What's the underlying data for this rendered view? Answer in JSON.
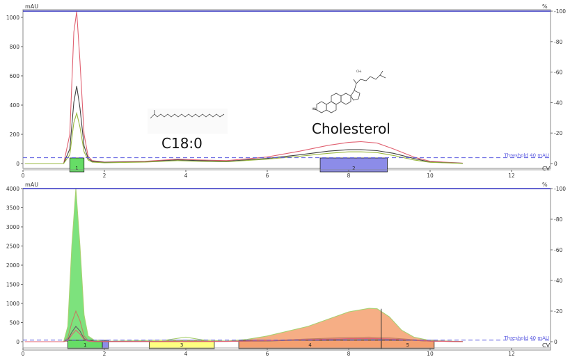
{
  "chart_data": [
    {
      "type": "line",
      "panel": "top",
      "left_axis_label": "mAU",
      "right_axis_label": "%",
      "x_axis_label": "CV",
      "xlim": [
        0,
        13
      ],
      "ylim": [
        0,
        1050
      ],
      "right_ylim": [
        0,
        100
      ],
      "x_ticks": [
        "0",
        "2",
        "4",
        "6",
        "8",
        "10",
        "12"
      ],
      "y_ticks": [
        "0",
        "200",
        "400",
        "600",
        "800",
        "1000"
      ],
      "right_ticks": [
        "0",
        "20",
        "40",
        "60",
        "80",
        "100"
      ],
      "grid": false,
      "threshold": {
        "value": 40,
        "label": "Threshold 40 mAU"
      },
      "gradient_percent": 100,
      "annotations": [
        "C18:0",
        "Cholesterol"
      ],
      "series": [
        {
          "color": "#e06070",
          "x": [
            0.05,
            1.0,
            1.15,
            1.25,
            1.32,
            1.4,
            1.5,
            1.6,
            1.7,
            2.0,
            3.0,
            3.8,
            4.3,
            5.0,
            6.0,
            6.8,
            7.5,
            8.0,
            8.3,
            8.7,
            9.1,
            9.6,
            10.0,
            10.8
          ],
          "y": [
            0,
            0,
            200,
            900,
            1040,
            700,
            200,
            50,
            20,
            10,
            15,
            30,
            25,
            20,
            45,
            85,
            125,
            145,
            150,
            140,
            100,
            45,
            15,
            3
          ]
        },
        {
          "color": "#404040",
          "x": [
            0.05,
            1.0,
            1.15,
            1.25,
            1.32,
            1.4,
            1.5,
            1.6,
            1.7,
            2.0,
            3.0,
            3.8,
            4.3,
            5.0,
            6.0,
            6.8,
            7.5,
            8.0,
            8.3,
            8.7,
            9.1,
            9.6,
            10.0,
            10.8
          ],
          "y": [
            0,
            0,
            100,
            420,
            530,
            380,
            120,
            35,
            15,
            8,
            12,
            25,
            20,
            15,
            35,
            60,
            85,
            95,
            95,
            88,
            70,
            35,
            10,
            2
          ]
        },
        {
          "color": "#9ab840",
          "x": [
            0.05,
            1.0,
            1.15,
            1.25,
            1.32,
            1.4,
            1.5,
            1.6,
            1.7,
            2.0,
            3.0,
            3.8,
            4.3,
            5.0,
            6.0,
            6.8,
            7.5,
            8.0,
            8.3,
            8.7,
            9.1,
            9.6,
            10.0,
            10.8
          ],
          "y": [
            0,
            0,
            60,
            280,
            345,
            250,
            80,
            25,
            10,
            5,
            10,
            20,
            15,
            12,
            30,
            50,
            70,
            80,
            80,
            75,
            55,
            25,
            8,
            1
          ]
        }
      ],
      "fractions": [
        {
          "label": "1",
          "x_start": 1.15,
          "x_end": 1.5,
          "color": "#66dd66"
        },
        {
          "label": "2",
          "x_start": 7.3,
          "x_end": 8.95,
          "color": "#8c8ce8"
        }
      ]
    },
    {
      "type": "line",
      "panel": "bottom",
      "left_axis_label": "mAU",
      "right_axis_label": "%",
      "x_axis_label": "CV",
      "xlim": [
        0,
        13
      ],
      "ylim": [
        0,
        4100
      ],
      "right_ylim": [
        0,
        100
      ],
      "x_ticks": [
        "0",
        "2",
        "4",
        "6",
        "8",
        "10",
        "12"
      ],
      "y_ticks": [
        "0",
        "500",
        "1000",
        "1500",
        "2000",
        "2500",
        "3000",
        "3500",
        "4000"
      ],
      "right_ticks": [
        "0",
        "20",
        "40",
        "60",
        "80",
        "100"
      ],
      "grid": false,
      "threshold": {
        "value": 40,
        "label": "Threshold 40 mAU"
      },
      "gradient_percent": 100,
      "series": [
        {
          "color": "#a8d070",
          "x": [
            0.05,
            1.0,
            1.1,
            1.2,
            1.3,
            1.4,
            1.5,
            1.6,
            1.75,
            2.0,
            3.5,
            4.0,
            4.4,
            5.0,
            5.5,
            6.0,
            7.0,
            8.0,
            8.5,
            8.7,
            9.0,
            9.3,
            9.6,
            10.0,
            10.8
          ],
          "y": [
            0,
            0,
            400,
            2500,
            4000,
            2500,
            700,
            150,
            40,
            10,
            40,
            120,
            50,
            15,
            60,
            150,
            400,
            780,
            870,
            860,
            650,
            300,
            120,
            30,
            5
          ]
        },
        {
          "color": "#c08060",
          "x": [
            0.05,
            1.0,
            1.1,
            1.2,
            1.3,
            1.4,
            1.5,
            1.6,
            1.75,
            2.0,
            5.0,
            6.0,
            7.0,
            8.0,
            8.5,
            9.0,
            9.5,
            10.0,
            10.8
          ],
          "y": [
            0,
            0,
            100,
            500,
            800,
            550,
            150,
            30,
            10,
            5,
            10,
            30,
            70,
            110,
            120,
            100,
            60,
            20,
            3
          ]
        },
        {
          "color": "#606060",
          "x": [
            0.05,
            1.0,
            1.1,
            1.2,
            1.3,
            1.4,
            1.5,
            1.6,
            1.75,
            2.0,
            5.0,
            6.0,
            7.0,
            8.0,
            8.5,
            9.0,
            9.5,
            10.0,
            10.8
          ],
          "y": [
            0,
            0,
            50,
            250,
            400,
            280,
            80,
            20,
            5,
            3,
            8,
            20,
            45,
            70,
            75,
            65,
            40,
            15,
            2
          ]
        },
        {
          "color": "#e06070",
          "x": [
            0.05,
            1.0,
            1.1,
            1.2,
            1.3,
            1.4,
            1.5,
            1.6,
            1.75,
            2.0,
            5.0,
            6.0,
            7.0,
            8.0,
            8.5,
            9.0,
            9.5,
            10.0,
            10.8
          ],
          "y": [
            0,
            0,
            30,
            180,
            300,
            200,
            60,
            15,
            5,
            3,
            8,
            25,
            55,
            80,
            85,
            75,
            45,
            15,
            2
          ]
        }
      ],
      "fractions": [
        {
          "label": "1",
          "x_start": 1.1,
          "x_end": 1.95,
          "color": "#66dd66"
        },
        {
          "label": "",
          "x_start": 1.95,
          "x_end": 2.1,
          "color": "#8c8ce8"
        },
        {
          "label": "3",
          "x_start": 3.1,
          "x_end": 4.7,
          "color": "#ffff80"
        },
        {
          "label": "4",
          "x_start": 5.3,
          "x_end": 8.8,
          "color": "#f4a070"
        },
        {
          "label": "5",
          "x_start": 8.8,
          "x_end": 10.1,
          "color": "#f4a070"
        }
      ],
      "divider_x": 8.8,
      "filled_series": {
        "color": "#66dd66",
        "x_start": 1.0,
        "x_end": 1.8
      },
      "filled_series_2": {
        "color": "#f4a070",
        "x_start": 5.3,
        "x_end": 10.0
      }
    }
  ]
}
